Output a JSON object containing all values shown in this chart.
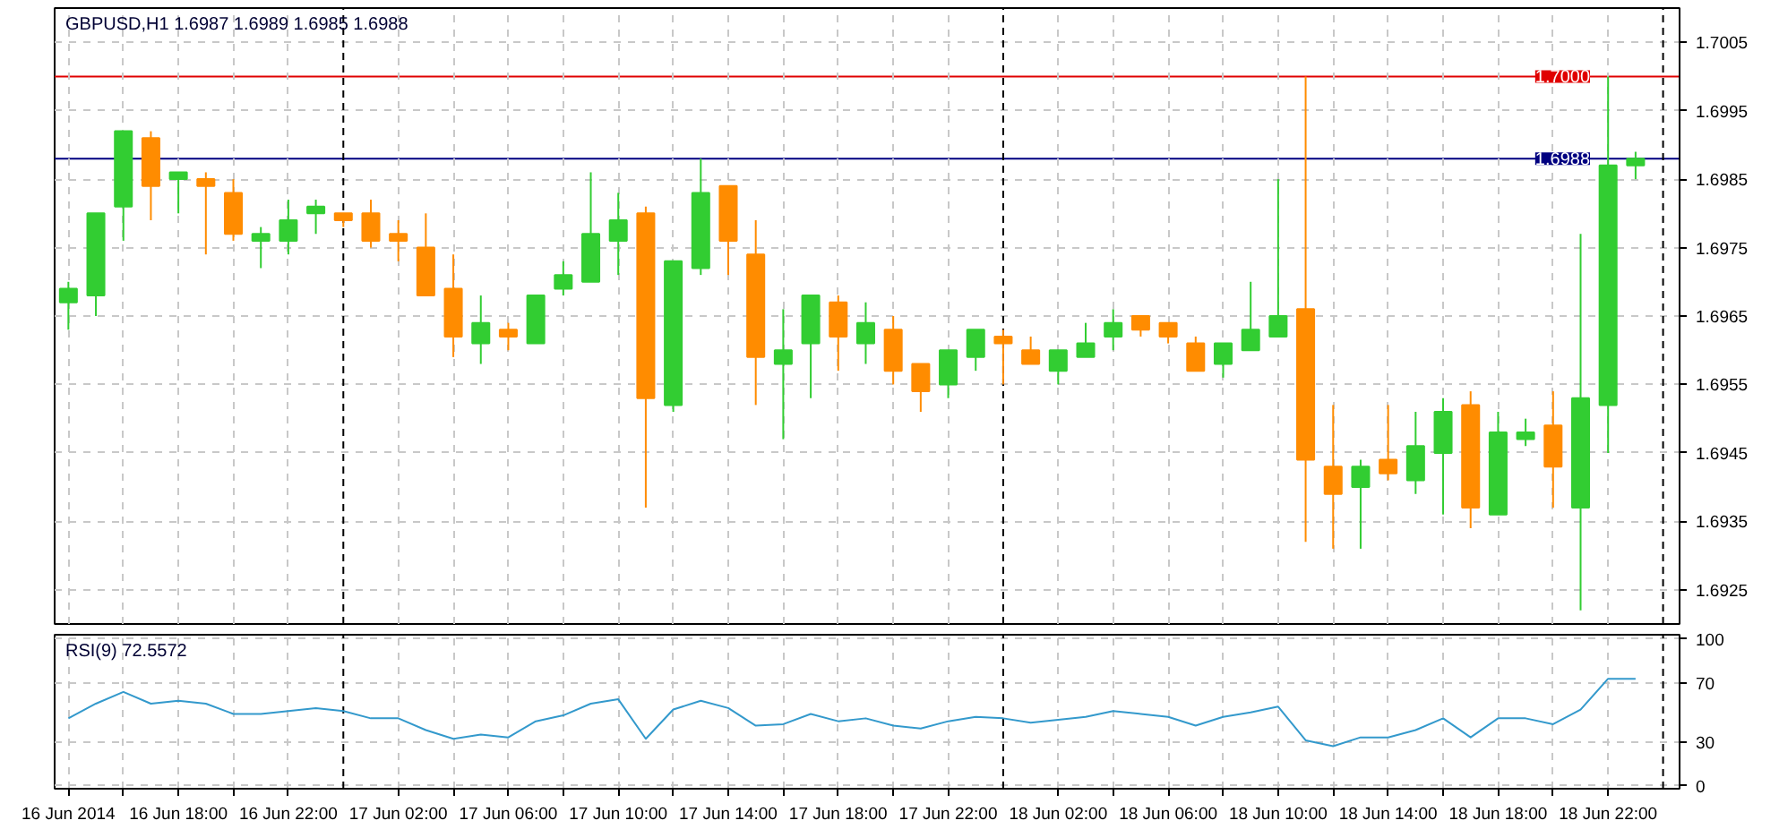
{
  "chart_data": [
    {
      "type": "candlestick",
      "title": "GBPUSD,H1 1.6987 1.6989 1.6985 1.6988",
      "x": [
        "2014-06-16T14:00",
        "2014-06-16T15:00",
        "2014-06-16T16:00",
        "2014-06-16T17:00",
        "2014-06-16T18:00",
        "2014-06-16T19:00",
        "2014-06-16T20:00",
        "2014-06-16T21:00",
        "2014-06-16T22:00",
        "2014-06-16T23:00",
        "2014-06-17T00:00",
        "2014-06-17T01:00",
        "2014-06-17T02:00",
        "2014-06-17T03:00",
        "2014-06-17T04:00",
        "2014-06-17T05:00",
        "2014-06-17T06:00",
        "2014-06-17T07:00",
        "2014-06-17T08:00",
        "2014-06-17T09:00",
        "2014-06-17T10:00",
        "2014-06-17T11:00",
        "2014-06-17T12:00",
        "2014-06-17T13:00",
        "2014-06-17T14:00",
        "2014-06-17T15:00",
        "2014-06-17T16:00",
        "2014-06-17T17:00",
        "2014-06-17T18:00",
        "2014-06-17T19:00",
        "2014-06-17T20:00",
        "2014-06-17T21:00",
        "2014-06-17T22:00",
        "2014-06-17T23:00",
        "2014-06-18T00:00",
        "2014-06-18T01:00",
        "2014-06-18T02:00",
        "2014-06-18T03:00",
        "2014-06-18T04:00",
        "2014-06-18T05:00",
        "2014-06-18T06:00",
        "2014-06-18T07:00",
        "2014-06-18T08:00",
        "2014-06-18T09:00",
        "2014-06-18T10:00",
        "2014-06-18T11:00",
        "2014-06-18T12:00",
        "2014-06-18T13:00",
        "2014-06-18T14:00",
        "2014-06-18T15:00",
        "2014-06-18T16:00",
        "2014-06-18T17:00",
        "2014-06-18T18:00",
        "2014-06-18T19:00",
        "2014-06-18T20:00",
        "2014-06-18T21:00",
        "2014-06-18T22:00",
        "2014-06-18T23:00"
      ],
      "ohlc": [
        [
          1.6967,
          1.697,
          1.6963,
          1.6969
        ],
        [
          1.6968,
          1.698,
          1.6965,
          1.698
        ],
        [
          1.6981,
          1.6992,
          1.6976,
          1.6992
        ],
        [
          1.6991,
          1.6992,
          1.6979,
          1.6984
        ],
        [
          1.6985,
          1.6986,
          1.698,
          1.6986
        ],
        [
          1.6985,
          1.6986,
          1.6974,
          1.6984
        ],
        [
          1.6983,
          1.6985,
          1.6976,
          1.6977
        ],
        [
          1.6976,
          1.6978,
          1.6972,
          1.6977
        ],
        [
          1.6976,
          1.6982,
          1.6974,
          1.6979
        ],
        [
          1.698,
          1.6982,
          1.6977,
          1.6981
        ],
        [
          1.698,
          1.698,
          1.6978,
          1.6979
        ],
        [
          1.698,
          1.6982,
          1.6975,
          1.6976
        ],
        [
          1.6977,
          1.6979,
          1.6973,
          1.6976
        ],
        [
          1.6975,
          1.698,
          1.6968,
          1.6968
        ],
        [
          1.6969,
          1.6974,
          1.6959,
          1.6962
        ],
        [
          1.6961,
          1.6968,
          1.6958,
          1.6964
        ],
        [
          1.6963,
          1.6964,
          1.696,
          1.6962
        ],
        [
          1.6961,
          1.6968,
          1.6961,
          1.6968
        ],
        [
          1.6969,
          1.6973,
          1.6968,
          1.6971
        ],
        [
          1.697,
          1.6986,
          1.697,
          1.6977
        ],
        [
          1.6976,
          1.6983,
          1.6971,
          1.6979
        ],
        [
          1.698,
          1.6981,
          1.6937,
          1.6953
        ],
        [
          1.6952,
          1.6973,
          1.6951,
          1.6973
        ],
        [
          1.6972,
          1.6988,
          1.6971,
          1.6983
        ],
        [
          1.6984,
          1.6984,
          1.6971,
          1.6976
        ],
        [
          1.6974,
          1.6979,
          1.6952,
          1.6959
        ],
        [
          1.6958,
          1.6966,
          1.6947,
          1.696
        ],
        [
          1.6961,
          1.6968,
          1.6953,
          1.6968
        ],
        [
          1.6967,
          1.6968,
          1.6957,
          1.6962
        ],
        [
          1.6961,
          1.6967,
          1.6958,
          1.6964
        ],
        [
          1.6963,
          1.6965,
          1.6955,
          1.6957
        ],
        [
          1.6958,
          1.6958,
          1.6951,
          1.6954
        ],
        [
          1.6955,
          1.696,
          1.6953,
          1.696
        ],
        [
          1.6959,
          1.6963,
          1.6957,
          1.6963
        ],
        [
          1.6962,
          1.6963,
          1.6955,
          1.6961
        ],
        [
          1.696,
          1.6962,
          1.6958,
          1.6958
        ],
        [
          1.6957,
          1.696,
          1.6955,
          1.696
        ],
        [
          1.6959,
          1.6964,
          1.6959,
          1.6961
        ],
        [
          1.6962,
          1.6966,
          1.696,
          1.6964
        ],
        [
          1.6965,
          1.6965,
          1.6962,
          1.6963
        ],
        [
          1.6964,
          1.6964,
          1.6961,
          1.6962
        ],
        [
          1.6961,
          1.6962,
          1.6957,
          1.6957
        ],
        [
          1.6958,
          1.6961,
          1.6956,
          1.6961
        ],
        [
          1.696,
          1.697,
          1.696,
          1.6963
        ],
        [
          1.6962,
          1.6985,
          1.6962,
          1.6965
        ],
        [
          1.6966,
          1.7,
          1.6932,
          1.6944
        ],
        [
          1.6943,
          1.6952,
          1.6931,
          1.6939
        ],
        [
          1.694,
          1.6944,
          1.6931,
          1.6943
        ],
        [
          1.6944,
          1.6952,
          1.6941,
          1.6942
        ],
        [
          1.6941,
          1.6951,
          1.6939,
          1.6946
        ],
        [
          1.6945,
          1.6953,
          1.6936,
          1.6951
        ],
        [
          1.6952,
          1.6954,
          1.6934,
          1.6937
        ],
        [
          1.6936,
          1.6951,
          1.6936,
          1.6948
        ],
        [
          1.6947,
          1.695,
          1.6946,
          1.6948
        ],
        [
          1.6949,
          1.6954,
          1.6937,
          1.6943
        ],
        [
          1.6937,
          1.6977,
          1.6922,
          1.6953
        ],
        [
          1.6952,
          1.7,
          1.6945,
          1.6987
        ],
        [
          1.6987,
          1.6989,
          1.6985,
          1.6988
        ]
      ],
      "colors": [
        "#32cd32",
        "#32cd32",
        "#32cd32",
        "#ff8c00",
        "#32cd32",
        "#ff8c00",
        "#ff8c00",
        "#32cd32",
        "#32cd32",
        "#32cd32",
        "#ff8c00",
        "#ff8c00",
        "#ff8c00",
        "#ff8c00",
        "#ff8c00",
        "#32cd32",
        "#ff8c00",
        "#32cd32",
        "#32cd32",
        "#32cd32",
        "#32cd32",
        "#ff8c00",
        "#32cd32",
        "#32cd32",
        "#ff8c00",
        "#ff8c00",
        "#32cd32",
        "#32cd32",
        "#ff8c00",
        "#32cd32",
        "#ff8c00",
        "#ff8c00",
        "#32cd32",
        "#32cd32",
        "#ff8c00",
        "#ff8c00",
        "#32cd32",
        "#32cd32",
        "#32cd32",
        "#ff8c00",
        "#ff8c00",
        "#ff8c00",
        "#32cd32",
        "#32cd32",
        "#32cd32",
        "#ff8c00",
        "#ff8c00",
        "#32cd32",
        "#ff8c00",
        "#32cd32",
        "#32cd32",
        "#ff8c00",
        "#32cd32",
        "#32cd32",
        "#ff8c00",
        "#32cd32",
        "#32cd32",
        "#32cd32"
      ],
      "xlim": [
        "2014-06-16T13:30",
        "2014-06-19T00:36"
      ],
      "ylim": [
        1.692,
        1.701
      ],
      "xticks": [
        "2014-06-16T14:00",
        "2014-06-16T16:00",
        "2014-06-16T18:00",
        "2014-06-16T20:00",
        "2014-06-16T22:00",
        "2014-06-17T02:00",
        "2014-06-17T04:00",
        "2014-06-17T06:00",
        "2014-06-17T08:00",
        "2014-06-17T10:00",
        "2014-06-17T12:00",
        "2014-06-17T14:00",
        "2014-06-17T16:00",
        "2014-06-17T18:00",
        "2014-06-17T20:00",
        "2014-06-17T22:00",
        "2014-06-18T02:00",
        "2014-06-18T04:00",
        "2014-06-18T06:00",
        "2014-06-18T08:00",
        "2014-06-18T10:00",
        "2014-06-18T12:00",
        "2014-06-18T14:00",
        "2014-06-18T16:00",
        "2014-06-18T18:00",
        "2014-06-18T20:00",
        "2014-06-18T22:00"
      ],
      "yticks": [
        1.6925,
        1.6935,
        1.6945,
        1.6955,
        1.6965,
        1.6975,
        1.6985,
        1.6995,
        1.7005
      ],
      "tick_labels": "y",
      "grid": true,
      "ref_lines": [
        {
          "axis": "y",
          "value": 1.7,
          "label": "1.7000",
          "color": "#e00000",
          "line_style": "solid"
        },
        {
          "axis": "y",
          "value": 1.6988,
          "label": "1.6988",
          "color": "#000080",
          "line_style": "solid"
        },
        {
          "axis": "x",
          "value": "2014-06-17T00:00",
          "color": "#000000",
          "line_style": "dashed"
        },
        {
          "axis": "x",
          "value": "2014-06-18T00:00",
          "color": "#000000",
          "line_style": "dashed"
        },
        {
          "axis": "x",
          "value": "2014-06-19T00:00",
          "color": "#000000",
          "line_style": "dashed"
        }
      ]
    },
    {
      "type": "line",
      "title": "RSI(9) 72.5572",
      "color": "#3399cc",
      "x": [
        "2014-06-16T14:00",
        "2014-06-16T15:00",
        "2014-06-16T16:00",
        "2014-06-16T17:00",
        "2014-06-16T18:00",
        "2014-06-16T19:00",
        "2014-06-16T20:00",
        "2014-06-16T21:00",
        "2014-06-16T22:00",
        "2014-06-16T23:00",
        "2014-06-17T00:00",
        "2014-06-17T01:00",
        "2014-06-17T02:00",
        "2014-06-17T03:00",
        "2014-06-17T04:00",
        "2014-06-17T05:00",
        "2014-06-17T06:00",
        "2014-06-17T07:00",
        "2014-06-17T08:00",
        "2014-06-17T09:00",
        "2014-06-17T10:00",
        "2014-06-17T11:00",
        "2014-06-17T12:00",
        "2014-06-17T13:00",
        "2014-06-17T14:00",
        "2014-06-17T15:00",
        "2014-06-17T16:00",
        "2014-06-17T17:00",
        "2014-06-17T18:00",
        "2014-06-17T19:00",
        "2014-06-17T20:00",
        "2014-06-17T21:00",
        "2014-06-17T22:00",
        "2014-06-17T23:00",
        "2014-06-18T00:00",
        "2014-06-18T01:00",
        "2014-06-18T02:00",
        "2014-06-18T03:00",
        "2014-06-18T04:00",
        "2014-06-18T05:00",
        "2014-06-18T06:00",
        "2014-06-18T07:00",
        "2014-06-18T08:00",
        "2014-06-18T09:00",
        "2014-06-18T10:00",
        "2014-06-18T11:00",
        "2014-06-18T12:00",
        "2014-06-18T13:00",
        "2014-06-18T14:00",
        "2014-06-18T15:00",
        "2014-06-18T16:00",
        "2014-06-18T17:00",
        "2014-06-18T18:00",
        "2014-06-18T19:00",
        "2014-06-18T20:00",
        "2014-06-18T21:00",
        "2014-06-18T22:00",
        "2014-06-18T23:00"
      ],
      "values": [
        46,
        56,
        64,
        56,
        58,
        56,
        49,
        49,
        51,
        53,
        51,
        46,
        46,
        38,
        32,
        35,
        33,
        44,
        48,
        56,
        59,
        32,
        52,
        58,
        53,
        41,
        42,
        49,
        44,
        46,
        41,
        39,
        44,
        47,
        46,
        43,
        45,
        47,
        51,
        49,
        47,
        41,
        47,
        50,
        54,
        31,
        27,
        33,
        33,
        38,
        46,
        33,
        46,
        46,
        42,
        52,
        73,
        73
      ],
      "xlim": [
        "2014-06-16T13:30",
        "2014-06-19T00:36"
      ],
      "ylim": [
        -2,
        103
      ],
      "xticks": [
        {
          "value": "2014-06-16T14:00",
          "label": "16 Jun 2014"
        },
        {
          "value": "2014-06-16T16:00",
          "label": null
        },
        {
          "value": "2014-06-16T18:00",
          "label": "16 Jun 18:00"
        },
        {
          "value": "2014-06-16T20:00",
          "label": null
        },
        {
          "value": "2014-06-16T22:00",
          "label": "16 Jun 22:00"
        },
        {
          "value": "2014-06-17T02:00",
          "label": "17 Jun 02:00"
        },
        {
          "value": "2014-06-17T04:00",
          "label": null
        },
        {
          "value": "2014-06-17T06:00",
          "label": "17 Jun 06:00"
        },
        {
          "value": "2014-06-17T08:00",
          "label": null
        },
        {
          "value": "2014-06-17T10:00",
          "label": "17 Jun 10:00"
        },
        {
          "value": "2014-06-17T12:00",
          "label": null
        },
        {
          "value": "2014-06-17T14:00",
          "label": "17 Jun 14:00"
        },
        {
          "value": "2014-06-17T16:00",
          "label": null
        },
        {
          "value": "2014-06-17T18:00",
          "label": "17 Jun 18:00"
        },
        {
          "value": "2014-06-17T20:00",
          "label": null
        },
        {
          "value": "2014-06-17T22:00",
          "label": "17 Jun 22:00"
        },
        {
          "value": "2014-06-18T02:00",
          "label": "18 Jun 02:00"
        },
        {
          "value": "2014-06-18T04:00",
          "label": null
        },
        {
          "value": "2014-06-18T06:00",
          "label": "18 Jun 06:00"
        },
        {
          "value": "2014-06-18T08:00",
          "label": null
        },
        {
          "value": "2014-06-18T10:00",
          "label": "18 Jun 10:00"
        },
        {
          "value": "2014-06-18T12:00",
          "label": null
        },
        {
          "value": "2014-06-18T14:00",
          "label": "18 Jun 14:00"
        },
        {
          "value": "2014-06-18T16:00",
          "label": null
        },
        {
          "value": "2014-06-18T18:00",
          "label": "18 Jun 18:00"
        },
        {
          "value": "2014-06-18T20:00",
          "label": null
        },
        {
          "value": "2014-06-18T22:00",
          "label": "18 Jun 22:00"
        }
      ],
      "yticks": [
        0,
        30,
        70,
        100
      ],
      "grid": true,
      "ref_lines": [
        {
          "axis": "x",
          "value": "2014-06-17T00:00",
          "color": "#000000",
          "line_style": "dashed"
        },
        {
          "axis": "x",
          "value": "2014-06-18T00:00",
          "color": "#000000",
          "line_style": "dashed"
        },
        {
          "axis": "x",
          "value": "2014-06-19T00:00",
          "color": "#000000",
          "line_style": "dashed"
        }
      ]
    }
  ]
}
